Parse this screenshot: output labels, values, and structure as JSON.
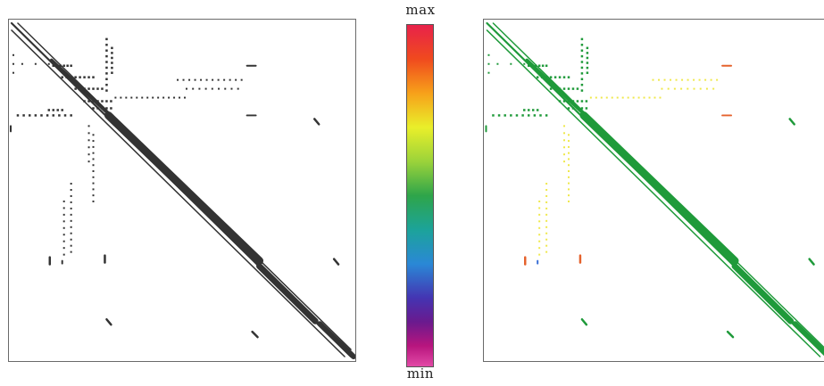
{
  "colorbar": {
    "max_label": "max",
    "min_label": "min",
    "colors": [
      "#e8224a",
      "#f04a1e",
      "#f7a11a",
      "#e9ef2a",
      "#9bd33a",
      "#2ea54a",
      "#1ca39a",
      "#2a88d6",
      "#4434b2",
      "#6a1a8e",
      "#b8157e",
      "#e24aa6"
    ]
  },
  "panels": {
    "left": {
      "description_color": "#333333"
    },
    "right": {
      "main_color": "#1f9a3a",
      "highlight_color": "#efe84a",
      "accent_color": "#e5622c",
      "minor_color": "#3a6fd6"
    }
  }
}
